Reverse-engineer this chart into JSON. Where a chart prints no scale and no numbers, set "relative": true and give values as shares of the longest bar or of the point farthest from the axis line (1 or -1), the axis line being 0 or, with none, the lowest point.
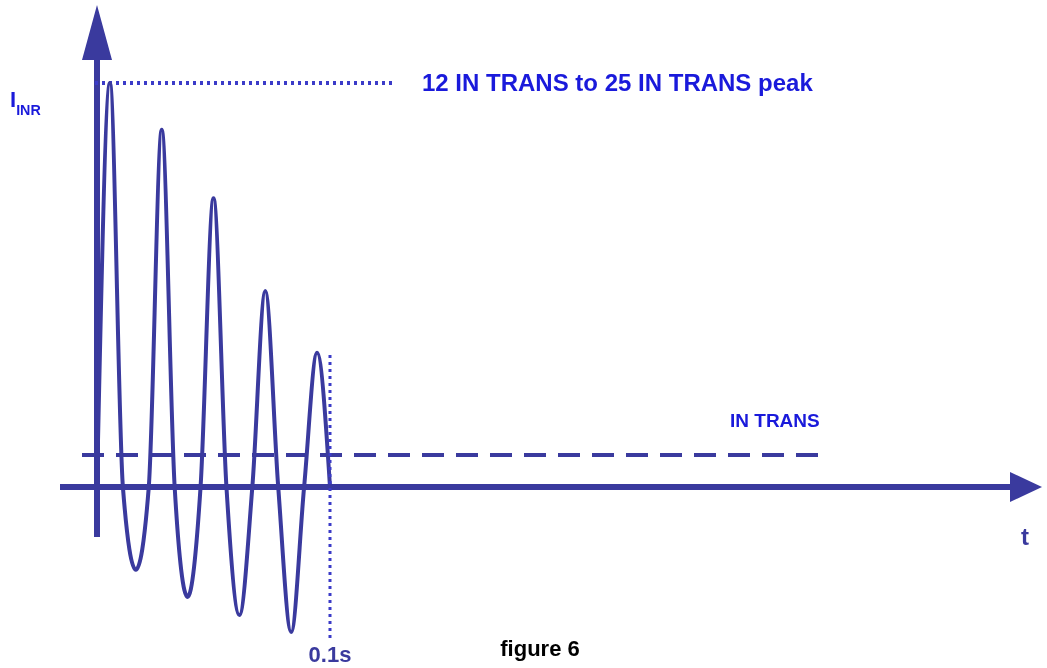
{
  "chart_data": {
    "type": "line",
    "relative": true,
    "ylabel": "I$_{INR}$",
    "categories": [
      null,
      null,
      null,
      null,
      null,
      null,
      null,
      null,
      null,
      null,
      null,
      null,
      null,
      null,
      null,
      null,
      null,
      null,
      null
    ],
    "series": [
      {
        "color": "#3a3a9e",
        "values": [
          0,
          1.0,
          0,
          -0.205,
          0,
          0.884,
          0,
          -0.272,
          0,
          0.715,
          0,
          -0.317,
          0,
          0.485,
          0,
          -0.359,
          0,
          0.332,
          0
        ]
      }
    ],
    "line_style": "solid",
    "ref_lines": [
      {
        "axis": "y",
        "value": 1.0,
        "label": "12 IN TRANS to 25 IN TRANS peak",
        "color": "#3b3bc8",
        "line_style": "dotted"
      },
      {
        "axis": "y",
        "value": 0.079,
        "label": "IN TRANS",
        "color": "#3a3a9e",
        "line_style": "dashed"
      },
      {
        "axis": "y",
        "value": 0,
        "color": "#3a3a9e",
        "line_style": "solid"
      }
    ],
    "annotations": [
      "0.1s",
      "figure 6",
      "t"
    ]
  }
}
